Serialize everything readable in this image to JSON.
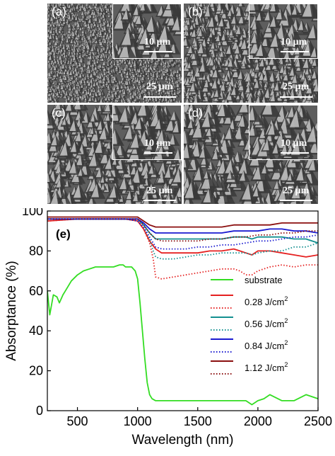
{
  "sem_panels": [
    {
      "id": "a",
      "label": "(a)",
      "inset_scale": "10 µm",
      "main_scale": "25 µm"
    },
    {
      "id": "b",
      "label": "(b)",
      "inset_scale": "10 µm",
      "main_scale": "25 µm"
    },
    {
      "id": "c",
      "label": "(c)",
      "inset_scale": "10 µm",
      "main_scale": "25 µm"
    },
    {
      "id": "d",
      "label": "(d)",
      "inset_scale": "10 µm",
      "main_scale": "25 µm"
    }
  ],
  "chart_data": {
    "type": "line",
    "panel_label": "(e)",
    "xlabel": "Wavelength (nm)",
    "ylabel": "Absorptance (%)",
    "xlim": [
      250,
      2500
    ],
    "ylim": [
      0,
      100
    ],
    "x_ticks": [
      500,
      1000,
      1500,
      2000,
      2500
    ],
    "y_ticks": [
      0,
      20,
      40,
      60,
      80,
      100
    ],
    "grid": false,
    "legend_position": "center-right",
    "legend": [
      {
        "label": "substrate",
        "solid_color": "#33dd22"
      },
      {
        "label": "0.28 J/cm",
        "sup": "2",
        "solid_color": "#e52020",
        "dotted_color": "#e52020"
      },
      {
        "label": "0.56 J/cm",
        "sup": "2",
        "solid_color": "#139090",
        "dotted_color": "#139090"
      },
      {
        "label": "0.84 J/cm",
        "sup": "2",
        "solid_color": "#1a1ad0",
        "dotted_color": "#1a1ad0"
      },
      {
        "label": "1.12 J/cm",
        "sup": "2",
        "solid_color": "#8b0f0f",
        "dotted_color": "#8b0f0f"
      }
    ],
    "series": [
      {
        "name": "substrate",
        "color": "#33dd22",
        "style": "solid",
        "x": [
          250,
          270,
          300,
          330,
          350,
          380,
          400,
          450,
          500,
          550,
          600,
          650,
          700,
          750,
          800,
          850,
          880,
          900,
          950,
          980,
          1000,
          1020,
          1040,
          1060,
          1080,
          1100,
          1120,
          1150,
          1200,
          1300,
          1500,
          1700,
          1900,
          1950,
          2000,
          2050,
          2100,
          2200,
          2300,
          2400,
          2500
        ],
        "y": [
          60,
          48,
          58,
          57,
          54,
          58,
          60,
          65,
          68,
          70,
          71,
          72,
          72,
          72,
          72,
          73,
          73,
          72,
          72,
          70,
          66,
          54,
          40,
          26,
          14,
          8,
          6,
          5,
          5,
          5,
          5,
          5,
          5,
          3,
          5,
          6,
          8,
          5,
          5,
          8,
          6
        ]
      },
      {
        "name": "0.28 J/cm2 solid",
        "color": "#e52020",
        "style": "solid",
        "x": [
          250,
          500,
          800,
          900,
          1000,
          1050,
          1100,
          1150,
          1200,
          1300,
          1400,
          1500,
          1600,
          1700,
          1800,
          1850,
          1900,
          1950,
          2000,
          2100,
          2200,
          2300,
          2400,
          2500
        ],
        "y": [
          95,
          96,
          96,
          96,
          95,
          91,
          85,
          81,
          79,
          79,
          79,
          79,
          80,
          80,
          81,
          80,
          79,
          78,
          80,
          80,
          79,
          78,
          77,
          78
        ]
      },
      {
        "name": "0.28 J/cm2 dotted",
        "color": "#e52020",
        "style": "dotted",
        "x": [
          250,
          500,
          800,
          900,
          1000,
          1050,
          1100,
          1130,
          1150,
          1200,
          1300,
          1400,
          1500,
          1600,
          1700,
          1800,
          1850,
          1900,
          1950,
          2000,
          2100,
          2200,
          2300,
          2400,
          2500
        ],
        "y": [
          95,
          96,
          96,
          96,
          95,
          91,
          84,
          76,
          67,
          66,
          67,
          68,
          69,
          70,
          71,
          71,
          70,
          68,
          68,
          70,
          72,
          73,
          72,
          73,
          73
        ]
      },
      {
        "name": "0.56 J/cm2 solid",
        "color": "#139090",
        "style": "solid",
        "x": [
          250,
          500,
          800,
          900,
          1000,
          1050,
          1100,
          1150,
          1200,
          1300,
          1400,
          1500,
          1600,
          1700,
          1800,
          1900,
          1950,
          2000,
          2100,
          2200,
          2300,
          2400,
          2500
        ],
        "y": [
          96,
          96,
          96,
          96,
          96,
          93,
          89,
          86,
          86,
          86,
          86,
          86,
          86,
          86,
          87,
          87,
          86,
          87,
          87,
          87,
          86,
          86,
          84
        ]
      },
      {
        "name": "0.56 J/cm2 dotted",
        "color": "#139090",
        "style": "dotted",
        "x": [
          250,
          500,
          800,
          900,
          1000,
          1050,
          1100,
          1130,
          1150,
          1200,
          1300,
          1400,
          1500,
          1600,
          1700,
          1800,
          1900,
          1950,
          2000,
          2100,
          2200,
          2300,
          2400,
          2500
        ],
        "y": [
          96,
          96,
          96,
          96,
          95,
          92,
          86,
          80,
          77,
          76,
          76,
          77,
          78,
          78,
          79,
          79,
          79,
          78,
          79,
          80,
          80,
          82,
          82,
          84
        ]
      },
      {
        "name": "0.84 J/cm2 solid",
        "color": "#1a1ad0",
        "style": "solid",
        "x": [
          250,
          500,
          800,
          900,
          1000,
          1050,
          1100,
          1150,
          1200,
          1300,
          1400,
          1500,
          1600,
          1700,
          1800,
          1900,
          2000,
          2100,
          2200,
          2300,
          2400,
          2500
        ],
        "y": [
          96,
          96,
          96,
          96,
          96,
          94,
          91,
          89,
          89,
          89,
          89,
          89,
          89,
          89,
          90,
          90,
          90,
          91,
          91,
          90,
          90,
          89
        ]
      },
      {
        "name": "0.84 J/cm2 dotted",
        "color": "#1a1ad0",
        "style": "dotted",
        "x": [
          250,
          500,
          800,
          900,
          1000,
          1050,
          1100,
          1150,
          1200,
          1300,
          1400,
          1500,
          1600,
          1700,
          1800,
          1900,
          2000,
          2100,
          2200,
          2300,
          2400,
          2500
        ],
        "y": [
          96,
          96,
          96,
          96,
          95,
          92,
          87,
          82,
          81,
          81,
          81,
          82,
          82,
          83,
          83,
          84,
          85,
          85,
          86,
          87,
          87,
          88
        ]
      },
      {
        "name": "1.12 J/cm2 solid",
        "color": "#8b0f0f",
        "style": "solid",
        "x": [
          250,
          500,
          800,
          900,
          1000,
          1050,
          1100,
          1150,
          1200,
          1300,
          1400,
          1500,
          1600,
          1700,
          1800,
          1900,
          2000,
          2100,
          2200,
          2300,
          2400,
          2500
        ],
        "y": [
          97,
          97,
          97,
          97,
          97,
          95,
          93,
          92,
          92,
          92,
          92,
          92,
          92,
          92,
          93,
          93,
          93,
          93,
          94,
          94,
          94,
          94
        ]
      },
      {
        "name": "1.12 J/cm2 dotted",
        "color": "#8b0f0f",
        "style": "dotted",
        "x": [
          250,
          500,
          800,
          900,
          1000,
          1050,
          1100,
          1150,
          1200,
          1300,
          1400,
          1500,
          1600,
          1700,
          1800,
          1900,
          2000,
          2100,
          2200,
          2300,
          2400,
          2500
        ],
        "y": [
          96,
          96,
          96,
          96,
          96,
          93,
          89,
          86,
          85,
          85,
          85,
          85,
          86,
          86,
          87,
          87,
          88,
          88,
          89,
          89,
          90,
          90
        ]
      }
    ]
  }
}
